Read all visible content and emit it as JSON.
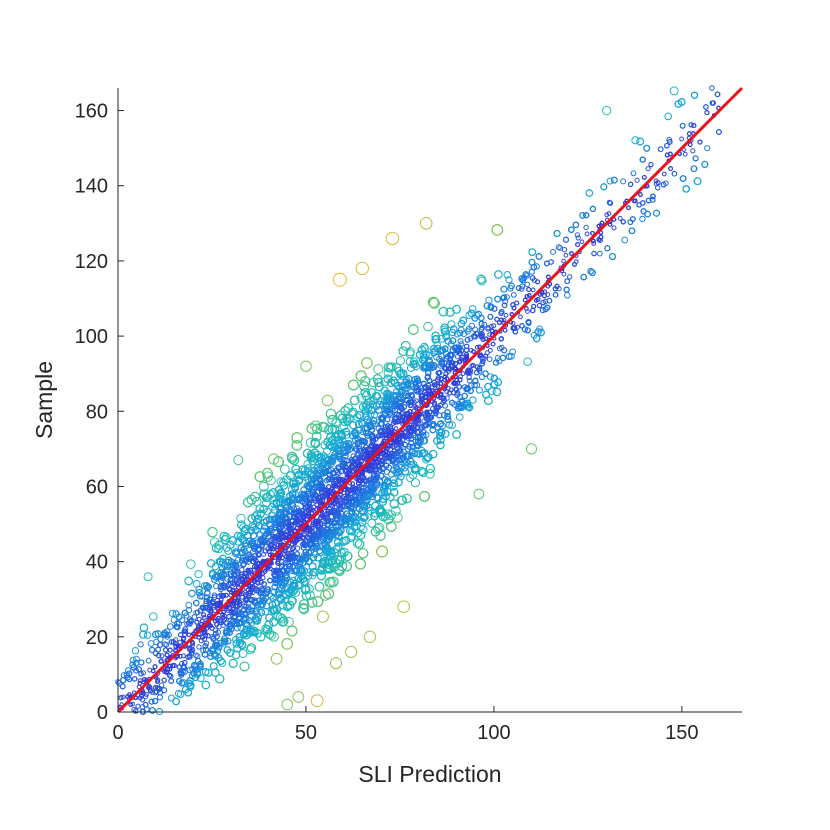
{
  "chart_data": {
    "type": "scatter",
    "title": "",
    "xlabel": "SLI Prediction",
    "ylabel": "Sample",
    "xlim": [
      0,
      166
    ],
    "ylim": [
      0,
      166
    ],
    "xticks": [
      "0",
      "50",
      "100",
      "150"
    ],
    "xtick_values": [
      0,
      50,
      100,
      150
    ],
    "yticks": [
      "0",
      "20",
      "40",
      "60",
      "80",
      "100",
      "120",
      "140",
      "160"
    ],
    "ytick_values": [
      0,
      20,
      40,
      60,
      80,
      100,
      120,
      140,
      160
    ],
    "grid": false,
    "legend": "none",
    "fit_line": {
      "name": "",
      "color": "#e8141c",
      "x": [
        0,
        166
      ],
      "y": [
        0,
        166
      ]
    },
    "marker_colormap": [
      "#3a2fd6",
      "#1f6fe0",
      "#19a9d6",
      "#25c0b0",
      "#6cc86b",
      "#c8be3a",
      "#f3b921"
    ],
    "notable_points": [
      {
        "x": 130,
        "y": 160
      },
      {
        "x": 158,
        "y": 166
      },
      {
        "x": 8,
        "y": 36
      },
      {
        "x": 110,
        "y": 70
      },
      {
        "x": 96,
        "y": 58
      },
      {
        "x": 76,
        "y": 28
      },
      {
        "x": 59,
        "y": 115
      },
      {
        "x": 73,
        "y": 126
      },
      {
        "x": 82,
        "y": 130
      },
      {
        "x": 65,
        "y": 118
      },
      {
        "x": 50,
        "y": 92
      },
      {
        "x": 48,
        "y": 4
      },
      {
        "x": 45,
        "y": 2
      },
      {
        "x": 53,
        "y": 3
      },
      {
        "x": 58,
        "y": 13
      },
      {
        "x": 62,
        "y": 16
      },
      {
        "x": 67,
        "y": 20
      },
      {
        "x": 32,
        "y": 67
      },
      {
        "x": 0,
        "y": 8
      },
      {
        "x": 6,
        "y": 18
      }
    ],
    "point_cloud": {
      "n": 9000,
      "x_range": [
        0,
        160
      ],
      "relation": "sample ≈ prediction",
      "marker": "open circle"
    }
  }
}
